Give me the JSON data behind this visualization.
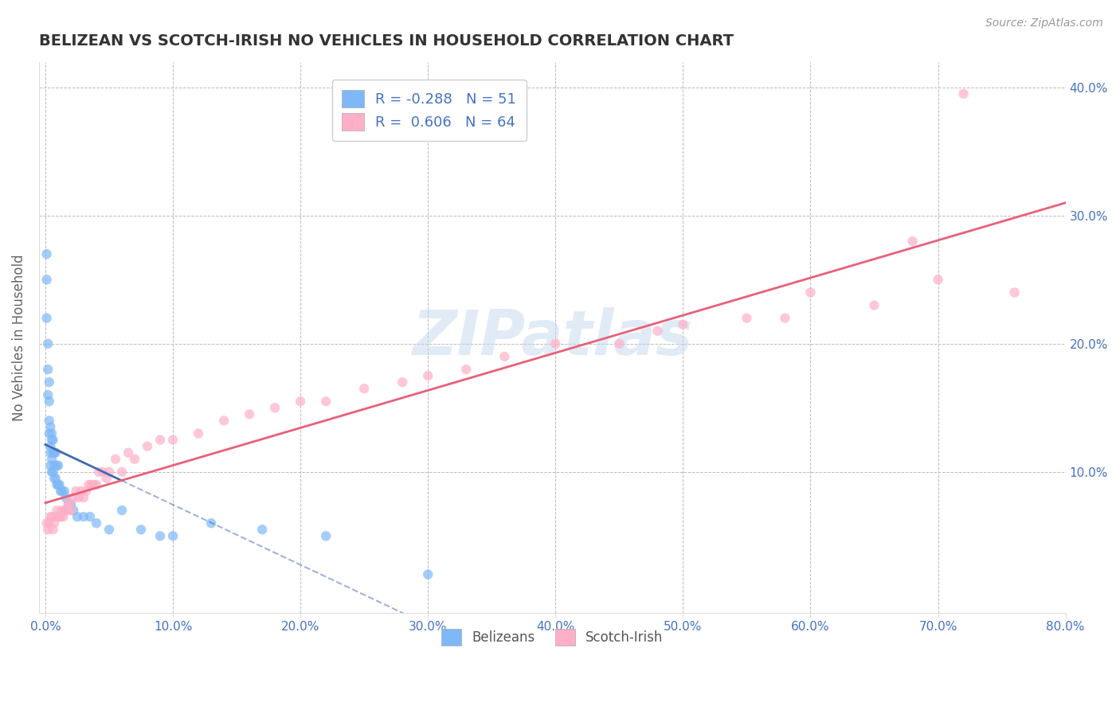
{
  "title": "BELIZEAN VS SCOTCH-IRISH NO VEHICLES IN HOUSEHOLD CORRELATION CHART",
  "source": "Source: ZipAtlas.com",
  "ylabel": "No Vehicles in Household",
  "watermark": "ZIPatlas",
  "xlim": [
    -0.005,
    0.8
  ],
  "ylim": [
    -0.01,
    0.42
  ],
  "xticks": [
    0.0,
    0.1,
    0.2,
    0.3,
    0.4,
    0.5,
    0.6,
    0.7,
    0.8
  ],
  "yticks": [
    0.1,
    0.2,
    0.3,
    0.4
  ],
  "xtick_labels": [
    "0.0%",
    "10.0%",
    "20.0%",
    "30.0%",
    "40.0%",
    "50.0%",
    "60.0%",
    "70.0%",
    "80.0%"
  ],
  "ytick_labels_right": [
    "10.0%",
    "20.0%",
    "30.0%",
    "40.0%"
  ],
  "belizean_color": "#7EB8F7",
  "scotch_irish_color": "#FFB0C8",
  "belizean_line_color": "#4169B0",
  "scotch_irish_line_color": "#E8607A",
  "legend_R_belizean": "-0.288",
  "legend_N_belizean": "51",
  "legend_R_scotch": "0.606",
  "legend_N_scotch": "64",
  "belizean_x": [
    0.001,
    0.001,
    0.001,
    0.002,
    0.002,
    0.002,
    0.003,
    0.003,
    0.003,
    0.003,
    0.004,
    0.004,
    0.004,
    0.004,
    0.005,
    0.005,
    0.005,
    0.005,
    0.006,
    0.006,
    0.006,
    0.007,
    0.007,
    0.007,
    0.008,
    0.008,
    0.009,
    0.009,
    0.01,
    0.01,
    0.011,
    0.012,
    0.013,
    0.015,
    0.016,
    0.018,
    0.02,
    0.022,
    0.025,
    0.03,
    0.035,
    0.04,
    0.05,
    0.06,
    0.075,
    0.09,
    0.1,
    0.13,
    0.17,
    0.22,
    0.3
  ],
  "belizean_y": [
    0.27,
    0.25,
    0.22,
    0.2,
    0.18,
    0.16,
    0.17,
    0.155,
    0.14,
    0.13,
    0.135,
    0.12,
    0.115,
    0.105,
    0.13,
    0.125,
    0.11,
    0.1,
    0.125,
    0.115,
    0.1,
    0.115,
    0.105,
    0.095,
    0.115,
    0.095,
    0.105,
    0.09,
    0.105,
    0.09,
    0.09,
    0.085,
    0.085,
    0.085,
    0.08,
    0.075,
    0.075,
    0.07,
    0.065,
    0.065,
    0.065,
    0.06,
    0.055,
    0.07,
    0.055,
    0.05,
    0.05,
    0.06,
    0.055,
    0.05,
    0.02
  ],
  "scotch_x": [
    0.001,
    0.002,
    0.003,
    0.004,
    0.005,
    0.006,
    0.007,
    0.008,
    0.009,
    0.01,
    0.011,
    0.012,
    0.013,
    0.014,
    0.015,
    0.016,
    0.017,
    0.018,
    0.019,
    0.02,
    0.022,
    0.024,
    0.026,
    0.028,
    0.03,
    0.032,
    0.034,
    0.036,
    0.038,
    0.04,
    0.042,
    0.045,
    0.048,
    0.05,
    0.055,
    0.06,
    0.065,
    0.07,
    0.08,
    0.09,
    0.1,
    0.12,
    0.14,
    0.16,
    0.18,
    0.2,
    0.22,
    0.25,
    0.28,
    0.3,
    0.33,
    0.36,
    0.4,
    0.45,
    0.48,
    0.5,
    0.55,
    0.58,
    0.6,
    0.65,
    0.68,
    0.7,
    0.72,
    0.76
  ],
  "scotch_y": [
    0.06,
    0.055,
    0.06,
    0.065,
    0.065,
    0.055,
    0.06,
    0.065,
    0.07,
    0.065,
    0.065,
    0.065,
    0.07,
    0.065,
    0.07,
    0.07,
    0.07,
    0.075,
    0.075,
    0.07,
    0.08,
    0.085,
    0.08,
    0.085,
    0.08,
    0.085,
    0.09,
    0.09,
    0.09,
    0.09,
    0.1,
    0.1,
    0.095,
    0.1,
    0.11,
    0.1,
    0.115,
    0.11,
    0.12,
    0.125,
    0.125,
    0.13,
    0.14,
    0.145,
    0.15,
    0.155,
    0.155,
    0.165,
    0.17,
    0.175,
    0.18,
    0.19,
    0.2,
    0.2,
    0.21,
    0.215,
    0.22,
    0.22,
    0.24,
    0.23,
    0.28,
    0.25,
    0.395,
    0.24
  ],
  "background_color": "#FFFFFF",
  "grid_color": "#BBBBBB",
  "title_color": "#333333",
  "axis_label_color": "#666666",
  "tick_color": "#4472C4",
  "source_color": "#999999"
}
